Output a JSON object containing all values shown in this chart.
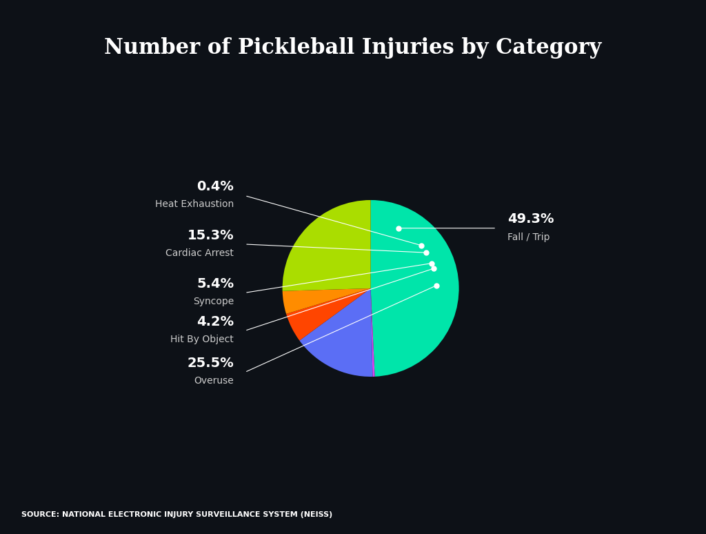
{
  "title": "Number of Pickleball Injuries by Category",
  "background_color": "#0d1117",
  "slices": [
    {
      "label": "Fall / Trip",
      "pct": 49.3,
      "color": "#00e5aa"
    },
    {
      "label": "Heat Exhaustion",
      "pct": 0.4,
      "color": "#d946ef"
    },
    {
      "label": "Cardiac Arrest",
      "pct": 15.3,
      "color": "#5b6ef5"
    },
    {
      "label": "Syncope",
      "pct": 5.4,
      "color": "#ff4500"
    },
    {
      "label": "Hit By Object",
      "pct": 4.2,
      "color": "#ff8c00"
    },
    {
      "label": "Overuse",
      "pct": 25.5,
      "color": "#aadd00"
    }
  ],
  "source_text": "SOURCE: NATIONAL ELECTRONIC INJURY SURVEILLANCE SYSTEM (NEISS)",
  "title_color": "#ffffff",
  "label_pct_color": "#ffffff",
  "label_name_color": "#cccccc",
  "source_color": "#ffffff",
  "line_color": "#ffffff",
  "dot_color": "#ffffff"
}
